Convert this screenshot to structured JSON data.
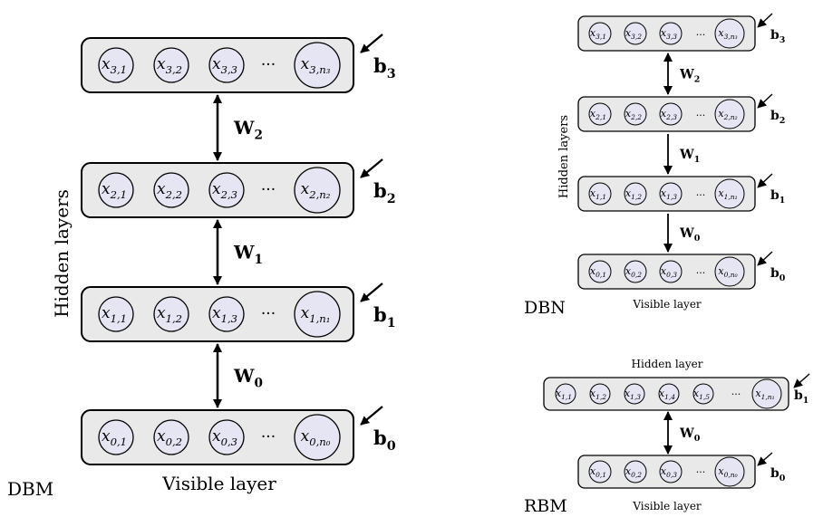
{
  "diagrams": [
    {
      "id": "dbm",
      "name": "DBM",
      "side_label": "Hidden layers",
      "bottom_label": "Visible layer",
      "layers": [
        {
          "units": [
            [
              "x",
              "3,1"
            ],
            [
              "x",
              "3,2"
            ],
            [
              "x",
              "3,3"
            ],
            [
              "x",
              "3,n₃"
            ]
          ],
          "bias": "b",
          "bias_sub": "3"
        },
        {
          "units": [
            [
              "x",
              "2,1"
            ],
            [
              "x",
              "2,2"
            ],
            [
              "x",
              "2,3"
            ],
            [
              "x",
              "2,n₂"
            ]
          ],
          "bias": "b",
          "bias_sub": "2"
        },
        {
          "units": [
            [
              "x",
              "1,1"
            ],
            [
              "x",
              "1,2"
            ],
            [
              "x",
              "1,3"
            ],
            [
              "x",
              "1,n₁"
            ]
          ],
          "bias": "b",
          "bias_sub": "1"
        },
        {
          "units": [
            [
              "x",
              "0,1"
            ],
            [
              "x",
              "0,2"
            ],
            [
              "x",
              "0,3"
            ],
            [
              "x",
              "0,n₀"
            ]
          ],
          "bias": "b",
          "bias_sub": "0"
        }
      ],
      "connections": [
        {
          "label": "W",
          "sub": "2",
          "type": "bidirectional"
        },
        {
          "label": "W",
          "sub": "1",
          "type": "bidirectional"
        },
        {
          "label": "W",
          "sub": "0",
          "type": "bidirectional"
        }
      ],
      "ellipsis": "···"
    },
    {
      "id": "dbn",
      "name": "DBN",
      "side_label": "Hidden layers",
      "bottom_label": "Visible layer",
      "layers": [
        {
          "units": [
            [
              "x",
              "3,1"
            ],
            [
              "x",
              "3,2"
            ],
            [
              "x",
              "3,3"
            ],
            [
              "x",
              "3,n₃"
            ]
          ],
          "bias": "b",
          "bias_sub": "3"
        },
        {
          "units": [
            [
              "x",
              "2,1"
            ],
            [
              "x",
              "2,2"
            ],
            [
              "x",
              "2,3"
            ],
            [
              "x",
              "2,n₂"
            ]
          ],
          "bias": "b",
          "bias_sub": "2"
        },
        {
          "units": [
            [
              "x",
              "1,1"
            ],
            [
              "x",
              "1,2"
            ],
            [
              "x",
              "1,3"
            ],
            [
              "x",
              "1,n₁"
            ]
          ],
          "bias": "b",
          "bias_sub": "1"
        },
        {
          "units": [
            [
              "x",
              "0,1"
            ],
            [
              "x",
              "0,2"
            ],
            [
              "x",
              "0,3"
            ],
            [
              "x",
              "0,n₀"
            ]
          ],
          "bias": "b",
          "bias_sub": "0"
        }
      ],
      "connections": [
        {
          "label": "W",
          "sub": "2",
          "type": "bidirectional"
        },
        {
          "label": "W",
          "sub": "1",
          "type": "down"
        },
        {
          "label": "W",
          "sub": "0",
          "type": "down"
        }
      ],
      "ellipsis": "···"
    },
    {
      "id": "rbm",
      "name": "RBM",
      "top_label": "Hidden layer",
      "bottom_label": "Visible layer",
      "layers": [
        {
          "units": [
            [
              "x",
              "1,1"
            ],
            [
              "x",
              "1,2"
            ],
            [
              "x",
              "1,3"
            ],
            [
              "x",
              "1,4"
            ],
            [
              "x",
              "1,5"
            ],
            [
              "x",
              "1,n₁"
            ]
          ],
          "bias": "b",
          "bias_sub": "1"
        },
        {
          "units": [
            [
              "x",
              "0,1"
            ],
            [
              "x",
              "0,2"
            ],
            [
              "x",
              "0,3"
            ],
            [
              "x",
              "0,n₀"
            ]
          ],
          "bias": "b",
          "bias_sub": "0"
        }
      ],
      "connections": [
        {
          "label": "W",
          "sub": "0",
          "type": "bidirectional"
        }
      ],
      "ellipsis": "···"
    }
  ]
}
